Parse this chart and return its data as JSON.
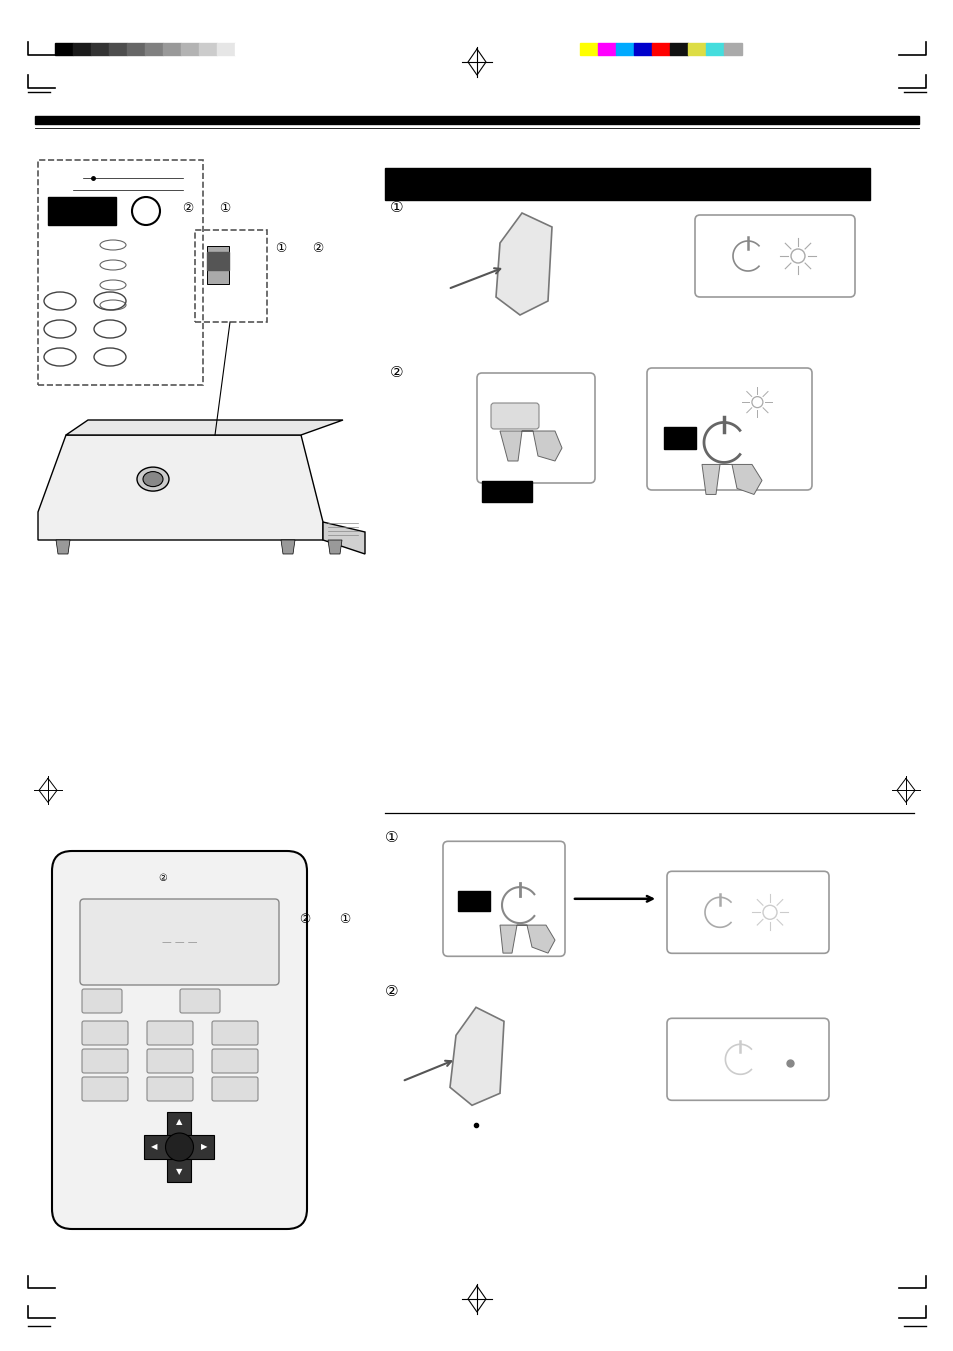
{
  "bg_color": "#ffffff",
  "page_width": 9.54,
  "page_height": 13.51,
  "grayscale_bars": [
    "#000000",
    "#1a1a1a",
    "#333333",
    "#4d4d4d",
    "#666666",
    "#808080",
    "#999999",
    "#b3b3b3",
    "#cccccc",
    "#e6e6e6",
    "#ffffff"
  ],
  "color_bars": [
    "#ffff00",
    "#ff00ff",
    "#00aaff",
    "#0000cc",
    "#ff0000",
    "#111111",
    "#dddd44",
    "#44dddd",
    "#aaaaaa"
  ],
  "header_bar_color": "#000000",
  "rule_color": "#000000"
}
